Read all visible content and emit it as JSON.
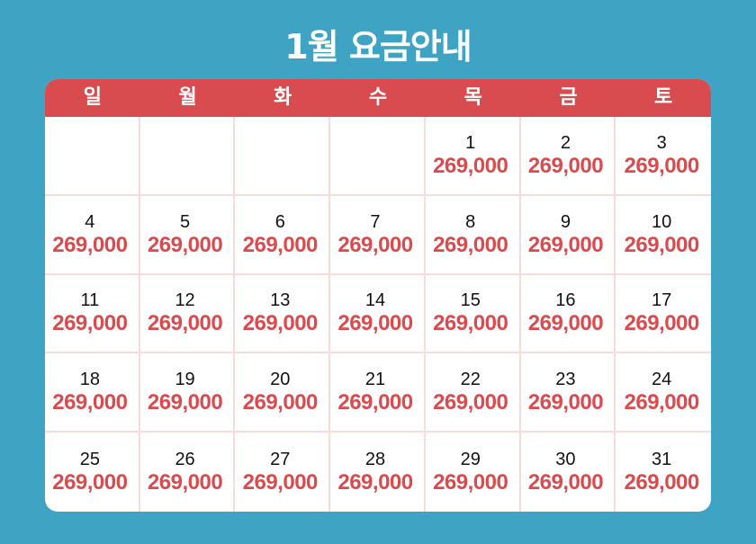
{
  "title": "1월 요금안내",
  "weekdays": [
    "일",
    "월",
    "화",
    "수",
    "목",
    "금",
    "토"
  ],
  "weeks": [
    [
      {
        "day": "",
        "price": ""
      },
      {
        "day": "",
        "price": ""
      },
      {
        "day": "",
        "price": ""
      },
      {
        "day": "",
        "price": ""
      },
      {
        "day": "1",
        "price": "269,000"
      },
      {
        "day": "2",
        "price": "269,000"
      },
      {
        "day": "3",
        "price": "269,000"
      }
    ],
    [
      {
        "day": "4",
        "price": "269,000"
      },
      {
        "day": "5",
        "price": "269,000"
      },
      {
        "day": "6",
        "price": "269,000"
      },
      {
        "day": "7",
        "price": "269,000"
      },
      {
        "day": "8",
        "price": "269,000"
      },
      {
        "day": "9",
        "price": "269,000"
      },
      {
        "day": "10",
        "price": "269,000"
      }
    ],
    [
      {
        "day": "11",
        "price": "269,000"
      },
      {
        "day": "12",
        "price": "269,000"
      },
      {
        "day": "13",
        "price": "269,000"
      },
      {
        "day": "14",
        "price": "269,000"
      },
      {
        "day": "15",
        "price": "269,000"
      },
      {
        "day": "16",
        "price": "269,000"
      },
      {
        "day": "17",
        "price": "269,000"
      }
    ],
    [
      {
        "day": "18",
        "price": "269,000"
      },
      {
        "day": "19",
        "price": "269,000"
      },
      {
        "day": "20",
        "price": "269,000"
      },
      {
        "day": "21",
        "price": "269,000"
      },
      {
        "day": "22",
        "price": "269,000"
      },
      {
        "day": "23",
        "price": "269,000"
      },
      {
        "day": "24",
        "price": "269,000"
      }
    ],
    [
      {
        "day": "25",
        "price": "269,000"
      },
      {
        "day": "26",
        "price": "269,000"
      },
      {
        "day": "27",
        "price": "269,000"
      },
      {
        "day": "28",
        "price": "269,000"
      },
      {
        "day": "29",
        "price": "269,000"
      },
      {
        "day": "30",
        "price": "269,000"
      },
      {
        "day": "31",
        "price": "269,000"
      }
    ]
  ],
  "colors": {
    "background": "#3fa3c3",
    "header": "#d84b4f",
    "price": "#d84b4f",
    "grid_line": "#f7dcdc"
  }
}
